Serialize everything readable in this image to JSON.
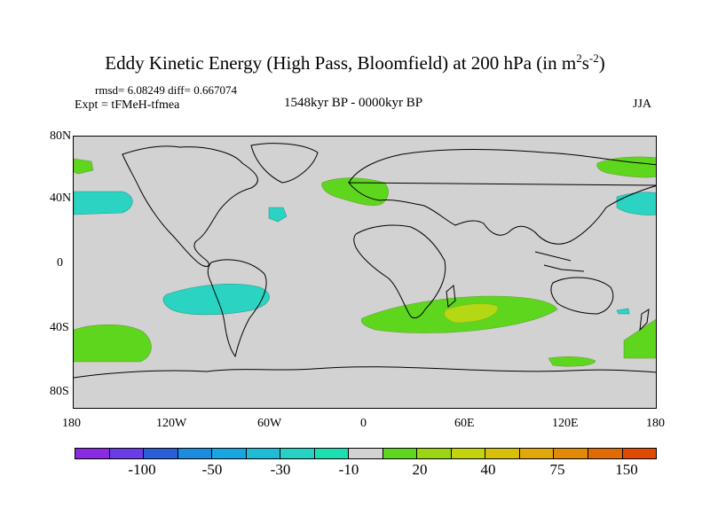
{
  "title_main": "Eddy Kinetic Energy (High Pass, Bloomfield) at 200 hPa (in m",
  "title_sup1": "2",
  "title_mid": "s",
  "title_sup2": "-2",
  "title_end": ")",
  "stats": "rmsd= 6.08249  diff= 0.667074",
  "expt": "Expt = tFMeH-tfmea",
  "period": "1548kyr BP - 0000kyr BP",
  "season": "JJA",
  "lat_labels": [
    "80N",
    "40N",
    "0",
    "40S",
    "80S"
  ],
  "lon_labels": [
    "180",
    "120W",
    "60W",
    "0",
    "60E",
    "120E",
    "180"
  ],
  "colorbar": {
    "colors": [
      "#8a2be2",
      "#6a3de8",
      "#2a5fd8",
      "#1e8cde",
      "#17a6e0",
      "#1fbcd6",
      "#27d2c4",
      "#1ce0b0",
      "#d2d2d2",
      "#5ed61e",
      "#9ad614",
      "#c3d40c",
      "#d8c00a",
      "#e0a808",
      "#e08a06",
      "#e06a04",
      "#e04a02"
    ],
    "labels": [
      "-100",
      "-50",
      "-30",
      "-10",
      "20",
      "40",
      "75",
      "150"
    ]
  }
}
